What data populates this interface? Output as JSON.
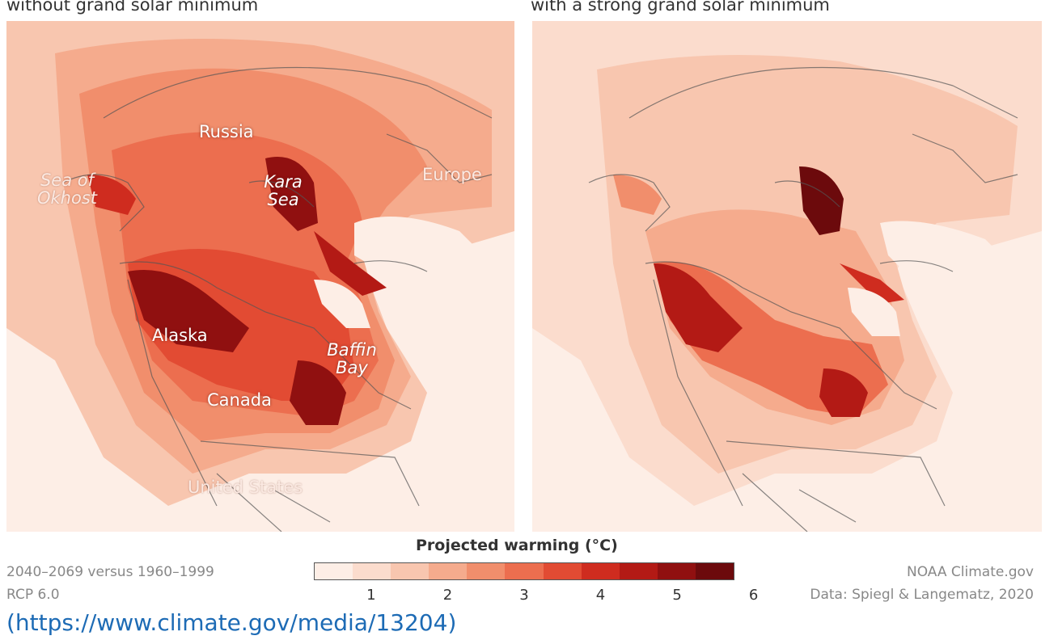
{
  "panels": [
    {
      "title": "without grand solar minimum",
      "labels": {
        "russia": "Russia",
        "sea_okhost": "Sea of\nOkhost",
        "kara_sea": "Kara\nSea",
        "europe": "Europe",
        "alaska": "Alaska",
        "baffin_bay": "Baffin\nBay",
        "canada": "Canada",
        "united_states": "United States"
      }
    },
    {
      "title": "with a strong grand solar minimum"
    }
  ],
  "legend": {
    "title": "Projected warming (°C)",
    "colors": [
      "#fdeee6",
      "#fbdccd",
      "#f8c6af",
      "#f5ab8d",
      "#f18e6c",
      "#ec6e4f",
      "#e24b33",
      "#cf2c1f",
      "#b31a15",
      "#901010",
      "#6c0a0c"
    ],
    "ticks": [
      "1",
      "2",
      "3",
      "4",
      "5",
      "6"
    ]
  },
  "footer": {
    "period": "2040–2069 versus 1960–1999",
    "scenario": "RCP 6.0",
    "credit": "NOAA Climate.gov",
    "data_source": "Data: Spiegl & Langematz, 2020"
  },
  "link": "(https://www.climate.gov/media/13204)"
}
